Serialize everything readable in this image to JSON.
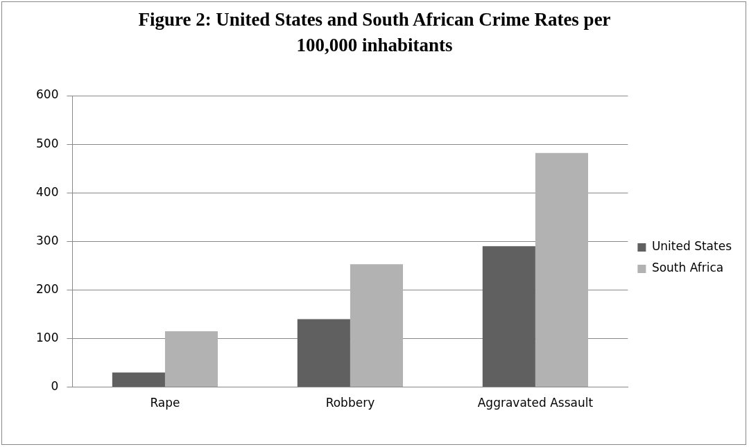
{
  "chart_data": {
    "type": "bar",
    "title": "Figure 2:  United States and South African Crime Rates per 100,000 inhabitants",
    "categories": [
      "Rape",
      "Robbery",
      "Aggravated Assault"
    ],
    "series": [
      {
        "name": "United States",
        "color": "#606060",
        "values": [
          30,
          140,
          290
        ]
      },
      {
        "name": "South Africa",
        "color": "#b2b2b2",
        "values": [
          115,
          253,
          482
        ]
      }
    ],
    "ylim": [
      0,
      600
    ],
    "yticks": [
      0,
      100,
      200,
      300,
      400,
      500,
      600
    ],
    "grid": "y",
    "legend": "right"
  }
}
